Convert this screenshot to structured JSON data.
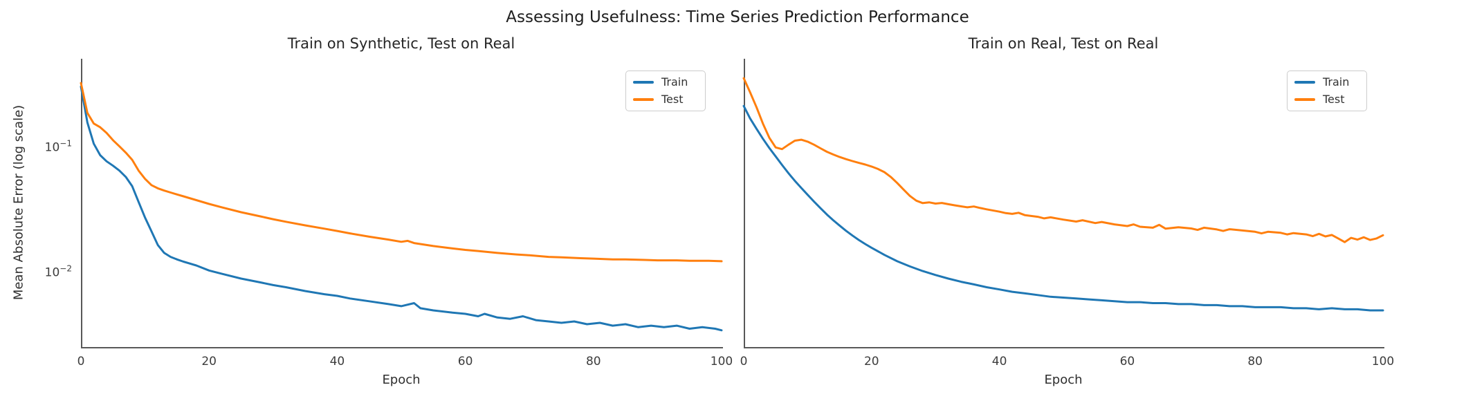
{
  "suptitle": "Assessing Usefulness: Time Series Prediction Performance",
  "colors": {
    "train": "#1f77b4",
    "test": "#ff7f0e",
    "spine": "#585858",
    "title_text": "#1e1e1e",
    "tick_text": "#3c3c3c",
    "legend_border": "#cccccc"
  },
  "y_axis": {
    "label": "Mean Absolute Error (log scale)",
    "scale": "log",
    "ticks": [
      {
        "base": "10",
        "exponent": "−1",
        "value": 0.1
      },
      {
        "base": "10",
        "exponent": "−2",
        "value": 0.01
      }
    ]
  },
  "chart_data": [
    {
      "type": "line",
      "title": "Train on Synthetic, Test on Real",
      "xlabel": "Epoch",
      "ylabel": "Mean Absolute Error (log scale)",
      "xlim": [
        0,
        100
      ],
      "ylim": [
        0.0025,
        0.5
      ],
      "yscale": "log",
      "x_ticks": [
        0,
        20,
        40,
        60,
        80,
        100
      ],
      "grid": false,
      "legend_position": "upper right",
      "series": [
        {
          "name": "Train",
          "color": "#1f77b4",
          "points": [
            [
              0,
              0.3
            ],
            [
              1,
              0.155
            ],
            [
              2,
              0.105
            ],
            [
              3,
              0.085
            ],
            [
              4,
              0.076
            ],
            [
              5,
              0.07
            ],
            [
              6,
              0.064
            ],
            [
              7,
              0.057
            ],
            [
              8,
              0.048
            ],
            [
              9,
              0.036
            ],
            [
              10,
              0.027
            ],
            [
              11,
              0.021
            ],
            [
              12,
              0.0163
            ],
            [
              13,
              0.0141
            ],
            [
              14,
              0.0131
            ],
            [
              15,
              0.0125
            ],
            [
              16,
              0.012
            ],
            [
              18,
              0.0112
            ],
            [
              20,
              0.0102
            ],
            [
              22,
              0.0096
            ],
            [
              25,
              0.0088
            ],
            [
              28,
              0.0082
            ],
            [
              30,
              0.0078
            ],
            [
              32,
              0.0075
            ],
            [
              35,
              0.007
            ],
            [
              38,
              0.0066
            ],
            [
              40,
              0.0064
            ],
            [
              42,
              0.0061
            ],
            [
              45,
              0.0058
            ],
            [
              48,
              0.0055
            ],
            [
              50,
              0.0053
            ],
            [
              52,
              0.0056
            ],
            [
              53,
              0.0051
            ],
            [
              55,
              0.0049
            ],
            [
              58,
              0.0047
            ],
            [
              60,
              0.0046
            ],
            [
              62,
              0.0044
            ],
            [
              63,
              0.0046
            ],
            [
              65,
              0.0043
            ],
            [
              67,
              0.0042
            ],
            [
              69,
              0.0044
            ],
            [
              71,
              0.0041
            ],
            [
              73,
              0.004
            ],
            [
              75,
              0.0039
            ],
            [
              77,
              0.004
            ],
            [
              79,
              0.0038
            ],
            [
              81,
              0.0039
            ],
            [
              83,
              0.0037
            ],
            [
              85,
              0.0038
            ],
            [
              87,
              0.0036
            ],
            [
              89,
              0.0037
            ],
            [
              91,
              0.0036
            ],
            [
              93,
              0.0037
            ],
            [
              95,
              0.0035
            ],
            [
              97,
              0.0036
            ],
            [
              99,
              0.0035
            ],
            [
              100,
              0.0034
            ]
          ]
        },
        {
          "name": "Test",
          "color": "#ff7f0e",
          "points": [
            [
              0,
              0.32
            ],
            [
              1,
              0.185
            ],
            [
              2,
              0.152
            ],
            [
              3,
              0.142
            ],
            [
              4,
              0.128
            ],
            [
              5,
              0.112
            ],
            [
              6,
              0.1
            ],
            [
              7,
              0.089
            ],
            [
              8,
              0.078
            ],
            [
              9,
              0.064
            ],
            [
              10,
              0.055
            ],
            [
              11,
              0.049
            ],
            [
              12,
              0.0462
            ],
            [
              13,
              0.0443
            ],
            [
              14,
              0.0428
            ],
            [
              15,
              0.0413
            ],
            [
              16,
              0.0399
            ],
            [
              18,
              0.0372
            ],
            [
              20,
              0.0347
            ],
            [
              22,
              0.0326
            ],
            [
              25,
              0.0298
            ],
            [
              28,
              0.0276
            ],
            [
              30,
              0.0262
            ],
            [
              32,
              0.025
            ],
            [
              35,
              0.0234
            ],
            [
              38,
              0.022
            ],
            [
              40,
              0.0211
            ],
            [
              42,
              0.0202
            ],
            [
              45,
              0.019
            ],
            [
              48,
              0.018
            ],
            [
              50,
              0.0173
            ],
            [
              51,
              0.0176
            ],
            [
              52,
              0.0169
            ],
            [
              55,
              0.016
            ],
            [
              58,
              0.0153
            ],
            [
              60,
              0.0149
            ],
            [
              62,
              0.0146
            ],
            [
              65,
              0.0141
            ],
            [
              68,
              0.0137
            ],
            [
              70,
              0.0135
            ],
            [
              73,
              0.0131
            ],
            [
              75,
              0.013
            ],
            [
              78,
              0.0128
            ],
            [
              80,
              0.0127
            ],
            [
              83,
              0.0125
            ],
            [
              85,
              0.0125
            ],
            [
              88,
              0.0124
            ],
            [
              90,
              0.0123
            ],
            [
              93,
              0.0123
            ],
            [
              95,
              0.0122
            ],
            [
              98,
              0.0122
            ],
            [
              100,
              0.0121
            ]
          ]
        }
      ]
    },
    {
      "type": "line",
      "title": "Train on Real, Test on Real",
      "xlabel": "Epoch",
      "ylabel": "Mean Absolute Error (log scale)",
      "xlim": [
        0,
        100
      ],
      "ylim": [
        0.0025,
        0.5
      ],
      "yscale": "log",
      "x_ticks": [
        0,
        20,
        40,
        60,
        80,
        100
      ],
      "grid": false,
      "legend_position": "upper right",
      "series": [
        {
          "name": "Train",
          "color": "#1f77b4",
          "points": [
            [
              0,
              0.21
            ],
            [
              1,
              0.167
            ],
            [
              2,
              0.138
            ],
            [
              3,
              0.115
            ],
            [
              4,
              0.097
            ],
            [
              5,
              0.083
            ],
            [
              6,
              0.071
            ],
            [
              7,
              0.061
            ],
            [
              8,
              0.053
            ],
            [
              9,
              0.0465
            ],
            [
              10,
              0.041
            ],
            [
              11,
              0.0362
            ],
            [
              12,
              0.0321
            ],
            [
              13,
              0.0286
            ],
            [
              14,
              0.0257
            ],
            [
              15,
              0.0233
            ],
            [
              16,
              0.0212
            ],
            [
              17,
              0.0194
            ],
            [
              18,
              0.0179
            ],
            [
              19,
              0.0166
            ],
            [
              20,
              0.0155
            ],
            [
              22,
              0.0136
            ],
            [
              24,
              0.0121
            ],
            [
              26,
              0.011
            ],
            [
              28,
              0.0101
            ],
            [
              30,
              0.0094
            ],
            [
              32,
              0.0088
            ],
            [
              34,
              0.0083
            ],
            [
              36,
              0.0079
            ],
            [
              38,
              0.0075
            ],
            [
              40,
              0.0072
            ],
            [
              42,
              0.0069
            ],
            [
              44,
              0.0067
            ],
            [
              46,
              0.0065
            ],
            [
              48,
              0.0063
            ],
            [
              50,
              0.0062
            ],
            [
              52,
              0.0061
            ],
            [
              54,
              0.006
            ],
            [
              56,
              0.0059
            ],
            [
              58,
              0.0058
            ],
            [
              60,
              0.0057
            ],
            [
              62,
              0.0057
            ],
            [
              64,
              0.0056
            ],
            [
              66,
              0.0056
            ],
            [
              68,
              0.0055
            ],
            [
              70,
              0.0055
            ],
            [
              72,
              0.0054
            ],
            [
              74,
              0.0054
            ],
            [
              76,
              0.0053
            ],
            [
              78,
              0.0053
            ],
            [
              80,
              0.0052
            ],
            [
              82,
              0.0052
            ],
            [
              84,
              0.0052
            ],
            [
              86,
              0.0051
            ],
            [
              88,
              0.0051
            ],
            [
              90,
              0.005
            ],
            [
              92,
              0.0051
            ],
            [
              94,
              0.005
            ],
            [
              96,
              0.005
            ],
            [
              98,
              0.0049
            ],
            [
              100,
              0.0049
            ]
          ]
        },
        {
          "name": "Test",
          "color": "#ff7f0e",
          "points": [
            [
              0,
              0.35
            ],
            [
              1,
              0.27
            ],
            [
              2,
              0.205
            ],
            [
              3,
              0.152
            ],
            [
              4,
              0.117
            ],
            [
              5,
              0.098
            ],
            [
              6,
              0.095
            ],
            [
              7,
              0.103
            ],
            [
              8,
              0.111
            ],
            [
              9,
              0.113
            ],
            [
              10,
              0.109
            ],
            [
              11,
              0.103
            ],
            [
              12,
              0.0965
            ],
            [
              13,
              0.0905
            ],
            [
              14,
              0.086
            ],
            [
              15,
              0.0822
            ],
            [
              16,
              0.079
            ],
            [
              17,
              0.0763
            ],
            [
              18,
              0.0738
            ],
            [
              19,
              0.0716
            ],
            [
              20,
              0.069
            ],
            [
              21,
              0.066
            ],
            [
              22,
              0.0622
            ],
            [
              23,
              0.057
            ],
            [
              24,
              0.051
            ],
            [
              25,
              0.0452
            ],
            [
              26,
              0.0402
            ],
            [
              27,
              0.0368
            ],
            [
              28,
              0.0352
            ],
            [
              29,
              0.0357
            ],
            [
              30,
              0.0349
            ],
            [
              31,
              0.0353
            ],
            [
              32,
              0.0345
            ],
            [
              33,
              0.0338
            ],
            [
              34,
              0.0332
            ],
            [
              35,
              0.0326
            ],
            [
              36,
              0.0331
            ],
            [
              37,
              0.0322
            ],
            [
              38,
              0.0314
            ],
            [
              40,
              0.0301
            ],
            [
              41,
              0.0293
            ],
            [
              42,
              0.0289
            ],
            [
              43,
              0.0295
            ],
            [
              44,
              0.0282
            ],
            [
              46,
              0.0274
            ],
            [
              47,
              0.0266
            ],
            [
              48,
              0.0271
            ],
            [
              50,
              0.026
            ],
            [
              52,
              0.0251
            ],
            [
              53,
              0.0257
            ],
            [
              55,
              0.0244
            ],
            [
              56,
              0.0249
            ],
            [
              58,
              0.0238
            ],
            [
              60,
              0.0231
            ],
            [
              61,
              0.0238
            ],
            [
              62,
              0.0228
            ],
            [
              64,
              0.0224
            ],
            [
              65,
              0.0236
            ],
            [
              66,
              0.022
            ],
            [
              68,
              0.0226
            ],
            [
              70,
              0.0221
            ],
            [
              71,
              0.0215
            ],
            [
              72,
              0.0224
            ],
            [
              74,
              0.0217
            ],
            [
              75,
              0.0211
            ],
            [
              76,
              0.0218
            ],
            [
              78,
              0.0213
            ],
            [
              80,
              0.0208
            ],
            [
              81,
              0.0202
            ],
            [
              82,
              0.0208
            ],
            [
              84,
              0.0204
            ],
            [
              85,
              0.0198
            ],
            [
              86,
              0.0203
            ],
            [
              88,
              0.0198
            ],
            [
              89,
              0.0192
            ],
            [
              90,
              0.02
            ],
            [
              91,
              0.0191
            ],
            [
              92,
              0.0196
            ],
            [
              93,
              0.0184
            ],
            [
              94,
              0.0172
            ],
            [
              95,
              0.0186
            ],
            [
              96,
              0.018
            ],
            [
              97,
              0.0188
            ],
            [
              98,
              0.0179
            ],
            [
              99,
              0.0184
            ],
            [
              100,
              0.0195
            ]
          ]
        }
      ]
    }
  ]
}
